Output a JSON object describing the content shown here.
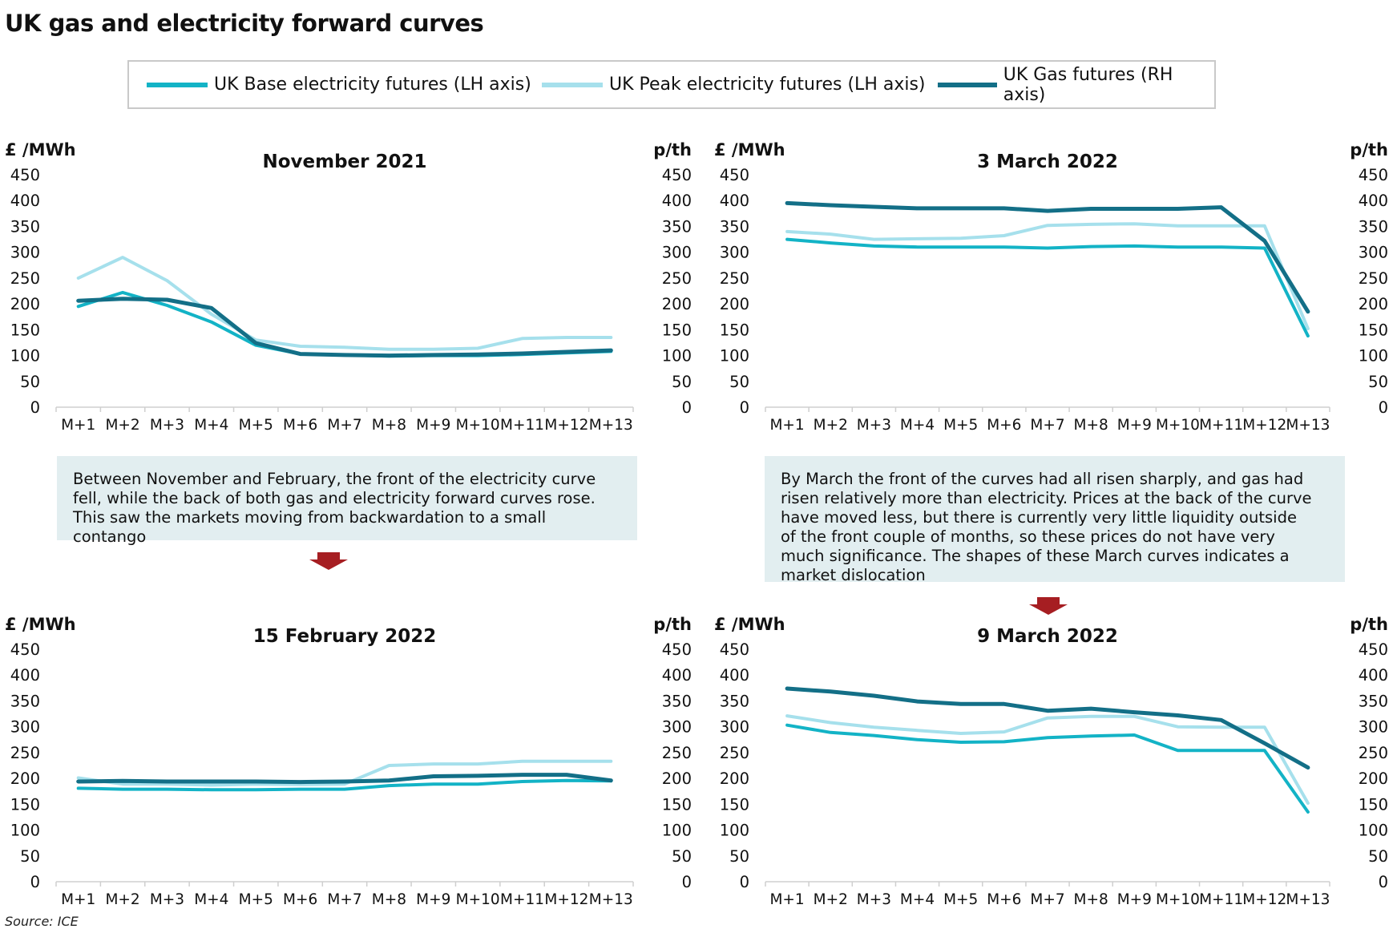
{
  "title": "UK gas and electricity forward curves",
  "legend": [
    {
      "label": "UK Base electricity futures (LH axis)",
      "color": "#13b3c6"
    },
    {
      "label": "UK Peak electricity futures (LH axis)",
      "color": "#a6e0ec"
    },
    {
      "label": "UK Gas futures (RH axis)",
      "color": "#136f87"
    }
  ],
  "notes": {
    "left": "Between November and February, the front of the electricity curve fell, while the back of both gas and electricity forward curves rose. This saw the markets moving from backwardation to a small contango",
    "right": "By March the front of the curves had all risen sharply, and gas had risen relatively more than electricity. Prices at the back of the curve have moved less, but there is currently very little liquidity outside of the front couple of months, so these prices do not have very much significance. The shapes of these March curves indicates a market dislocation"
  },
  "source": "Source: ICE",
  "colors": {
    "arrow": "#a61e22",
    "note_bg": "#e2eef0"
  },
  "chart_data": [
    {
      "type": "line",
      "title": "November 2021",
      "ylabel_left": "£ /MWh",
      "ylabel_right": "p/th",
      "ylim": [
        0,
        450
      ],
      "yticks": [
        "0",
        "50",
        "100",
        "150",
        "200",
        "250",
        "300",
        "350",
        "400",
        "450"
      ],
      "categories": [
        "M+1",
        "M+2",
        "M+3",
        "M+4",
        "M+5",
        "M+6",
        "M+7",
        "M+8",
        "M+9",
        "M+10",
        "M+11",
        "M+12",
        "M+13"
      ],
      "series": [
        {
          "name": "UK Base electricity futures (LH axis)",
          "values": [
            195,
            222,
            197,
            165,
            120,
            103,
            101,
            99,
            100,
            100,
            102,
            105,
            108
          ]
        },
        {
          "name": "UK Peak electricity futures (LH axis)",
          "values": [
            250,
            290,
            245,
            180,
            130,
            118,
            116,
            112,
            112,
            114,
            133,
            135,
            135
          ]
        },
        {
          "name": "UK Gas futures (RH axis)",
          "values": [
            206,
            210,
            208,
            192,
            124,
            103,
            101,
            100,
            101,
            102,
            104,
            107,
            110
          ]
        }
      ]
    },
    {
      "type": "line",
      "title": "3 March 2022",
      "ylabel_left": "£ /MWh",
      "ylabel_right": "p/th",
      "ylim": [
        0,
        450
      ],
      "yticks": [
        "0",
        "50",
        "100",
        "150",
        "200",
        "250",
        "300",
        "350",
        "400",
        "450"
      ],
      "categories": [
        "M+1",
        "M+2",
        "M+3",
        "M+4",
        "M+5",
        "M+6",
        "M+7",
        "M+8",
        "M+9",
        "M+10",
        "M+11",
        "M+12",
        "M+13"
      ],
      "series": [
        {
          "name": "UK Base electricity futures (LH axis)",
          "values": [
            325,
            318,
            312,
            310,
            310,
            310,
            308,
            311,
            312,
            310,
            310,
            308,
            138
          ]
        },
        {
          "name": "UK Peak electricity futures (LH axis)",
          "values": [
            340,
            335,
            325,
            326,
            327,
            332,
            352,
            354,
            355,
            351,
            351,
            351,
            152
          ]
        },
        {
          "name": "UK Gas futures (RH axis)",
          "values": [
            395,
            391,
            388,
            385,
            385,
            385,
            380,
            384,
            384,
            384,
            387,
            322,
            185
          ]
        }
      ]
    },
    {
      "type": "line",
      "title": "15 February 2022",
      "ylabel_left": "£ /MWh",
      "ylabel_right": "p/th",
      "ylim": [
        0,
        450
      ],
      "yticks": [
        "0",
        "50",
        "100",
        "150",
        "200",
        "250",
        "300",
        "350",
        "400",
        "450"
      ],
      "categories": [
        "M+1",
        "M+2",
        "M+3",
        "M+4",
        "M+5",
        "M+6",
        "M+7",
        "M+8",
        "M+9",
        "M+10",
        "M+11",
        "M+12",
        "M+13"
      ],
      "series": [
        {
          "name": "UK Base electricity futures (LH axis)",
          "values": [
            181,
            179,
            179,
            178,
            178,
            179,
            179,
            186,
            189,
            189,
            194,
            196,
            195
          ]
        },
        {
          "name": "UK Peak electricity futures (LH axis)",
          "values": [
            201,
            189,
            189,
            187,
            189,
            188,
            189,
            225,
            228,
            228,
            233,
            233,
            233
          ]
        },
        {
          "name": "UK Gas futures (RH axis)",
          "values": [
            194,
            195,
            194,
            194,
            194,
            193,
            194,
            196,
            204,
            205,
            207,
            207,
            196
          ]
        }
      ]
    },
    {
      "type": "line",
      "title": "9 March 2022",
      "ylabel_left": "£ /MWh",
      "ylabel_right": "p/th",
      "ylim": [
        0,
        450
      ],
      "yticks": [
        "0",
        "50",
        "100",
        "150",
        "200",
        "250",
        "300",
        "350",
        "400",
        "450"
      ],
      "categories": [
        "M+1",
        "M+2",
        "M+3",
        "M+4",
        "M+5",
        "M+6",
        "M+7",
        "M+8",
        "M+9",
        "M+10",
        "M+11",
        "M+12",
        "M+13"
      ],
      "series": [
        {
          "name": "UK Base electricity futures (LH axis)",
          "values": [
            303,
            289,
            283,
            275,
            270,
            271,
            279,
            282,
            284,
            254,
            254,
            254,
            135
          ]
        },
        {
          "name": "UK Peak electricity futures (LH axis)",
          "values": [
            321,
            308,
            299,
            293,
            287,
            290,
            317,
            320,
            320,
            300,
            299,
            299,
            152
          ]
        },
        {
          "name": "UK Gas futures (RH axis)",
          "values": [
            374,
            368,
            360,
            349,
            344,
            344,
            331,
            335,
            328,
            322,
            313,
            268,
            221
          ]
        }
      ]
    }
  ]
}
